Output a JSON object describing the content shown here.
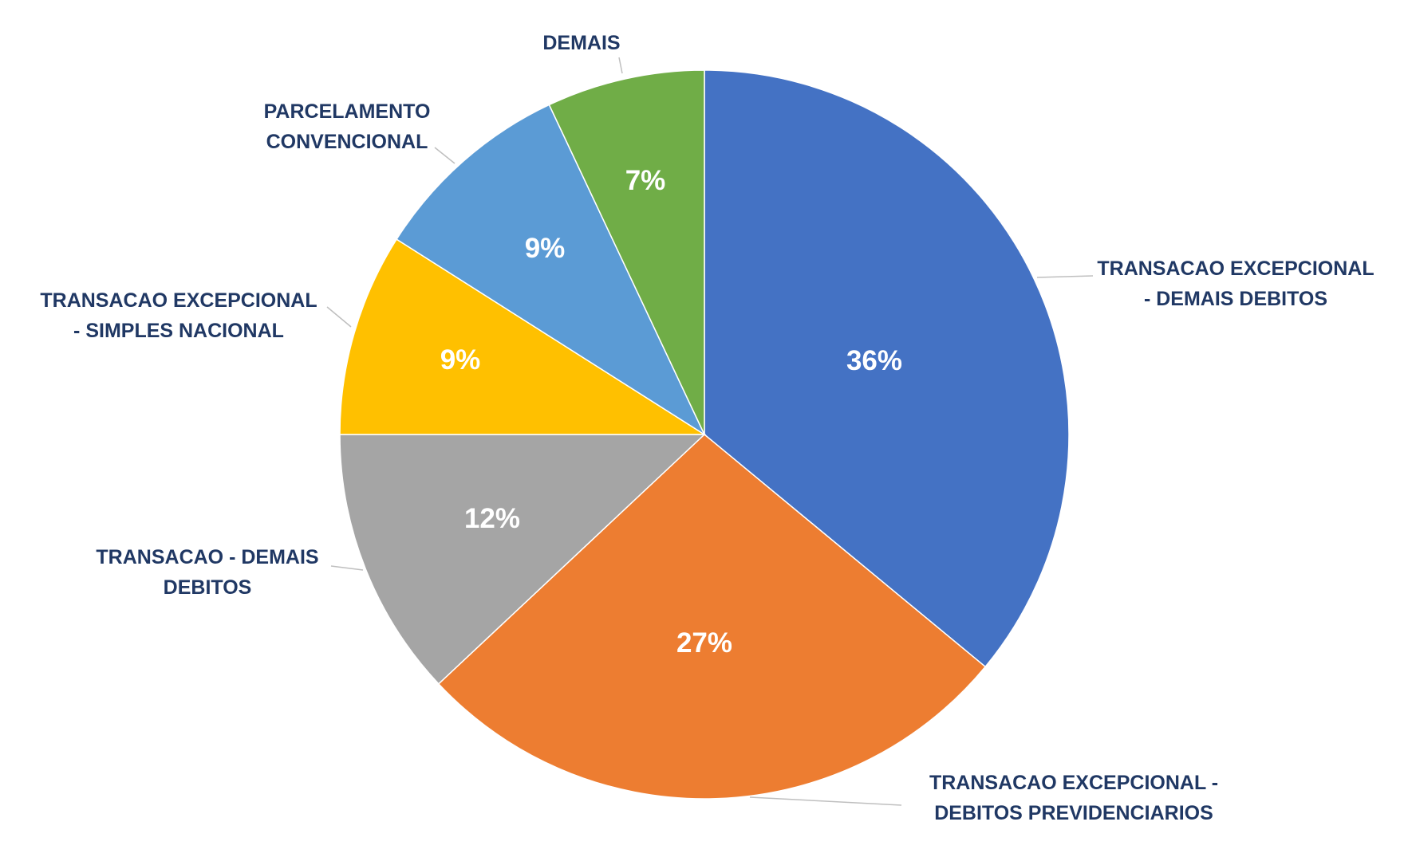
{
  "chart_data": {
    "type": "pie",
    "title": "",
    "start": "top",
    "direction": "clockwise",
    "slices": [
      {
        "label": [
          "TRANSACAO EXCEPCIONAL",
          "- DEMAIS DEBITOS"
        ],
        "value": 36,
        "display": "36%",
        "color": "#4472C4"
      },
      {
        "label": [
          "TRANSACAO EXCEPCIONAL -",
          "DEBITOS PREVIDENCIARIOS"
        ],
        "value": 27,
        "display": "27%",
        "color": "#ED7D31"
      },
      {
        "label": [
          "TRANSACAO - DEMAIS",
          "DEBITOS"
        ],
        "value": 12,
        "display": "12%",
        "color": "#A5A5A5"
      },
      {
        "label": [
          "TRANSACAO EXCEPCIONAL",
          "- SIMPLES NACIONAL"
        ],
        "value": 9,
        "display": "9%",
        "color": "#FFC000"
      },
      {
        "label": [
          "PARCELAMENTO",
          "CONVENCIONAL"
        ],
        "value": 9,
        "display": "9%",
        "color": "#5B9BD5"
      },
      {
        "label": [
          "DEMAIS"
        ],
        "value": 7,
        "display": "7%",
        "color": "#70AD47"
      }
    ]
  }
}
